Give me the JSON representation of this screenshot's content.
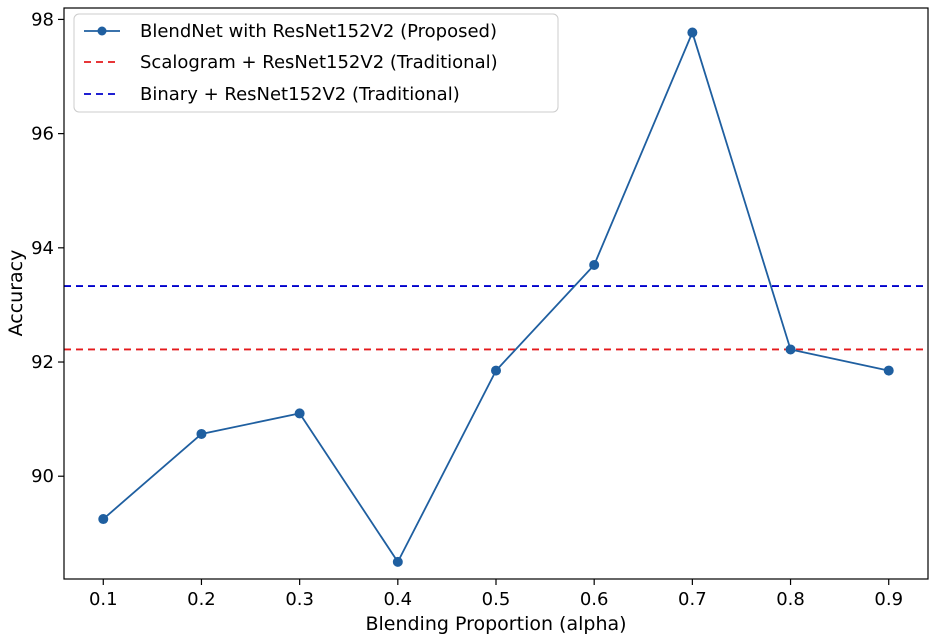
{
  "chart_data": {
    "type": "line",
    "title": "",
    "xlabel": "Blending Proportion (alpha)",
    "ylabel": "Accuracy",
    "x": [
      0.1,
      0.2,
      0.3,
      0.4,
      0.5,
      0.6,
      0.7,
      0.8,
      0.9
    ],
    "x_tick_labels": [
      "0.1",
      "0.2",
      "0.3",
      "0.4",
      "0.5",
      "0.6",
      "0.7",
      "0.8",
      "0.9"
    ],
    "xlim": [
      0.06,
      0.94
    ],
    "y_ticks": [
      90,
      92,
      94,
      96,
      98
    ],
    "y_tick_labels": [
      "90",
      "92",
      "94",
      "96",
      "98"
    ],
    "ylim": [
      88.2,
      98.2
    ],
    "grid": false,
    "legend_position": "top-left",
    "series": [
      {
        "name": "BlendNet with ResNet152V2 (Proposed)",
        "style": "solid-with-markers",
        "color": "#1f5fa0",
        "values": [
          89.25,
          90.74,
          91.1,
          88.5,
          91.85,
          93.7,
          97.77,
          92.22,
          91.85
        ]
      },
      {
        "name": "Scalogram + ResNet152V2 (Traditional)",
        "style": "dashed-horizontal",
        "color": "#e41a1c",
        "value": 92.22
      },
      {
        "name": "Binary + ResNet152V2 (Traditional)",
        "style": "dashed-horizontal",
        "color": "#0000cc",
        "value": 93.33
      }
    ]
  }
}
